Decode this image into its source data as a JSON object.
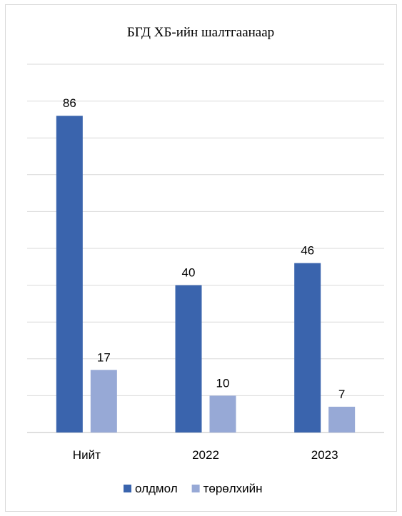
{
  "chart_data": {
    "type": "bar",
    "title": "БГД ХБ-ийн шалтгаанаар",
    "categories": [
      "Нийт",
      "2022",
      "2023"
    ],
    "series": [
      {
        "name": "олдмол",
        "values": [
          86,
          40,
          46
        ],
        "color": "#3a64ad"
      },
      {
        "name": "төрөлхийн",
        "values": [
          17,
          10,
          7
        ],
        "color": "#97a9d6"
      }
    ],
    "ylim": [
      0,
      100
    ],
    "grid": true,
    "data_labels": true,
    "legend": "bottom",
    "gridline_color": "#d9d9d9",
    "axis_color": "#bfbfbf"
  }
}
